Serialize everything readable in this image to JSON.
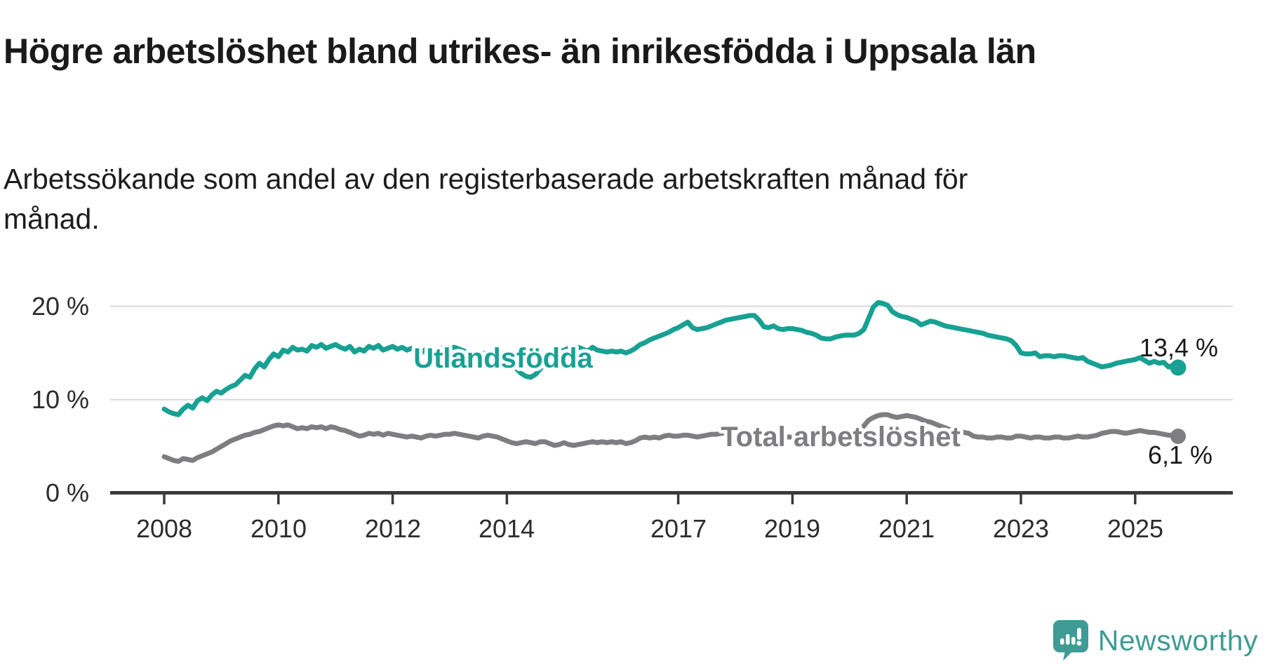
{
  "header": {
    "title": "Högre arbetslöshet bland utrikes- än inrikesfödda i Uppsala län",
    "subtitle": "Arbetssökande som andel av den registerbaserade arbetskraften månad för månad."
  },
  "logo": {
    "text": "Newsworthy",
    "icon": "newsworthy-speech-bubble-chart-icon",
    "color": "#3e9b95"
  },
  "colors": {
    "foreign_born_line": "#18a192",
    "total_line": "#7e7e82",
    "gridline": "#d8d8d8",
    "axis": "#3a3a3a",
    "text": "#1a1a1a"
  },
  "chart_data": {
    "type": "line",
    "title": "Högre arbetslöshet bland utrikes- än inrikesfödda i Uppsala län",
    "subtitle": "Arbetssökande som andel av den registerbaserade arbetskraften månad för månad.",
    "unit": "%",
    "frequency": "monthly",
    "x_start": "2008-01",
    "x_end": "2025-10",
    "ylim": [
      0,
      22
    ],
    "grid": "horizontal",
    "y_gridline_values": [
      10,
      20
    ],
    "y_tick_labels": [
      "0 %",
      "10 %",
      "20 %"
    ],
    "x_tick_years": [
      2008,
      2010,
      2012,
      2014,
      2017,
      2019,
      2021,
      2023,
      2025
    ],
    "x_tick_labels": [
      "2008",
      "2010",
      "2012",
      "2014",
      "2017",
      "2019",
      "2021",
      "2023",
      "2025"
    ],
    "legend_position": "inline-on-line",
    "series": [
      {
        "name": "Utlandsfödda",
        "color": "#18a192",
        "end_label": "13,4 %",
        "last_value": 13.4,
        "values": [
          9.0,
          8.7,
          8.5,
          8.4,
          9.0,
          9.4,
          9.1,
          9.9,
          10.2,
          9.9,
          10.5,
          10.9,
          10.7,
          11.1,
          11.4,
          11.6,
          12.1,
          12.6,
          12.4,
          13.3,
          13.9,
          13.5,
          14.3,
          14.9,
          14.6,
          15.3,
          15.1,
          15.6,
          15.3,
          15.4,
          15.2,
          15.8,
          15.6,
          15.9,
          15.5,
          15.7,
          15.9,
          15.6,
          15.4,
          15.7,
          15.1,
          15.4,
          15.2,
          15.7,
          15.5,
          15.8,
          15.3,
          15.5,
          15.7,
          15.4,
          15.6,
          15.3,
          15.5,
          15.2,
          15.0,
          15.4,
          15.6,
          15.3,
          15.5,
          15.6,
          15.5,
          15.6,
          15.4,
          15.2,
          15.0,
          14.8,
          14.6,
          14.9,
          15.1,
          14.8,
          14.6,
          14.4,
          14.2,
          13.8,
          13.3,
          12.8,
          12.5,
          12.4,
          12.7,
          13.3,
          13.9,
          14.4,
          14.8,
          15.1,
          15.3,
          15.5,
          15.3,
          15.6,
          15.4,
          15.2,
          15.6,
          15.3,
          15.2,
          15.1,
          15.2,
          15.1,
          15.2,
          15.0,
          15.2,
          15.5,
          15.9,
          16.1,
          16.4,
          16.6,
          16.8,
          17.0,
          17.2,
          17.5,
          17.7,
          18.0,
          18.3,
          17.7,
          17.5,
          17.6,
          17.7,
          17.9,
          18.1,
          18.3,
          18.5,
          18.6,
          18.7,
          18.8,
          18.9,
          19.0,
          19.0,
          18.5,
          17.8,
          17.7,
          17.9,
          17.6,
          17.5,
          17.6,
          17.6,
          17.5,
          17.4,
          17.2,
          17.1,
          16.9,
          16.6,
          16.5,
          16.5,
          16.7,
          16.8,
          16.9,
          16.9,
          16.9,
          17.1,
          17.5,
          18.7,
          19.9,
          20.4,
          20.3,
          20.1,
          19.4,
          19.1,
          18.9,
          18.8,
          18.6,
          18.4,
          18.0,
          18.2,
          18.4,
          18.3,
          18.1,
          17.9,
          17.8,
          17.7,
          17.6,
          17.5,
          17.4,
          17.3,
          17.2,
          17.1,
          16.9,
          16.8,
          16.7,
          16.6,
          16.5,
          16.3,
          15.8,
          15.0,
          14.9,
          14.9,
          15.0,
          14.6,
          14.7,
          14.7,
          14.6,
          14.7,
          14.7,
          14.6,
          14.5,
          14.4,
          14.5,
          14.1,
          13.9,
          13.7,
          13.5,
          13.6,
          13.7,
          13.9,
          14.0,
          14.1,
          14.2,
          14.3,
          14.5,
          14.2,
          13.9,
          14.1,
          13.9,
          14.0,
          13.5,
          13.7,
          13.4
        ]
      },
      {
        "name": "Total arbetslöshet",
        "color": "#7e7e82",
        "end_label": "6,1 %",
        "last_value": 6.1,
        "values": [
          3.9,
          3.7,
          3.5,
          3.4,
          3.7,
          3.6,
          3.5,
          3.8,
          4.0,
          4.2,
          4.4,
          4.7,
          5.0,
          5.3,
          5.6,
          5.8,
          6.0,
          6.2,
          6.3,
          6.5,
          6.6,
          6.8,
          7.0,
          7.2,
          7.3,
          7.2,
          7.3,
          7.1,
          6.9,
          7.0,
          6.9,
          7.1,
          7.0,
          7.1,
          6.9,
          7.1,
          7.0,
          6.8,
          6.7,
          6.5,
          6.3,
          6.1,
          6.2,
          6.4,
          6.3,
          6.4,
          6.2,
          6.4,
          6.3,
          6.2,
          6.1,
          6.0,
          6.1,
          6.0,
          5.9,
          6.1,
          6.2,
          6.1,
          6.2,
          6.3,
          6.3,
          6.4,
          6.3,
          6.2,
          6.1,
          6.0,
          5.9,
          6.1,
          6.2,
          6.1,
          6.0,
          5.8,
          5.6,
          5.4,
          5.3,
          5.4,
          5.5,
          5.4,
          5.3,
          5.5,
          5.5,
          5.3,
          5.1,
          5.2,
          5.4,
          5.2,
          5.1,
          5.2,
          5.3,
          5.4,
          5.5,
          5.4,
          5.5,
          5.4,
          5.5,
          5.4,
          5.5,
          5.3,
          5.4,
          5.6,
          5.9,
          6.0,
          5.9,
          6.0,
          5.9,
          6.1,
          6.2,
          6.1,
          6.1,
          6.2,
          6.2,
          6.1,
          6.0,
          6.1,
          6.2,
          6.3,
          6.3,
          6.4,
          6.4,
          6.4,
          6.4,
          6.4,
          6.4,
          6.4,
          6.3,
          6.2,
          6.0,
          6.0,
          6.0,
          5.9,
          5.9,
          6.0,
          6.0,
          5.9,
          5.9,
          5.8,
          5.8,
          5.8,
          5.8,
          5.8,
          5.8,
          5.9,
          6.0,
          6.0,
          6.0,
          6.1,
          6.5,
          7.2,
          7.8,
          8.1,
          8.3,
          8.4,
          8.4,
          8.2,
          8.1,
          8.2,
          8.3,
          8.2,
          8.1,
          7.9,
          7.7,
          7.6,
          7.4,
          7.2,
          7.0,
          6.8,
          6.7,
          6.6,
          6.5,
          6.4,
          6.1,
          6.0,
          6.0,
          5.9,
          5.9,
          6.0,
          6.0,
          5.9,
          5.9,
          6.1,
          6.1,
          6.0,
          5.9,
          6.0,
          6.0,
          5.9,
          5.9,
          6.0,
          6.0,
          5.9,
          5.9,
          6.0,
          6.1,
          6.0,
          6.0,
          6.1,
          6.2,
          6.4,
          6.5,
          6.6,
          6.6,
          6.5,
          6.4,
          6.5,
          6.6,
          6.7,
          6.6,
          6.5,
          6.5,
          6.4,
          6.3,
          6.2,
          6.2,
          6.1
        ]
      }
    ]
  }
}
